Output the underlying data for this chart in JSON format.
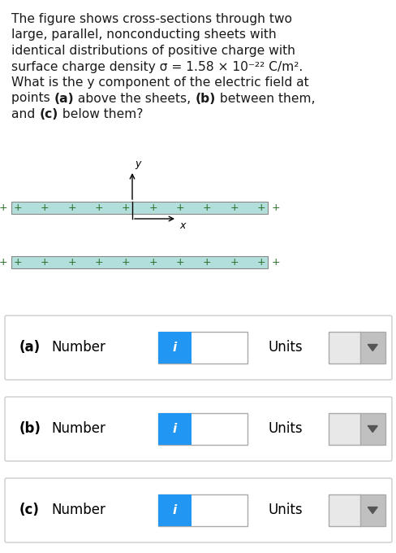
{
  "background_color": "#ffffff",
  "text_color": "#1a1a1a",
  "sheet_color": "#b2dfdb",
  "sheet_border_color": "#888888",
  "plus_color": "#2a6e2a",
  "blue_btn_color": "#2196F3",
  "dropdown_bg": "#d8d8d8",
  "dropdown_arrow_bg": "#c0c0c0",
  "input_border": "#aaaaaa",
  "row_border": "#cccccc",
  "fig_width": 4.89,
  "fig_height": 6.8,
  "dpi": 100,
  "title_lines": [
    "The figure shows cross-sections through two",
    "large, parallel, nonconducting sheets with",
    "identical distributions of positive charge with",
    "surface charge density σ = 1.58 × 10⁻²² C/m².",
    "What is the y component of the electric field at",
    "points (a) above the sheets, (b) between them,",
    "and (c) below them?"
  ],
  "title_bold_segments": [
    [
      5,
      [
        "points ",
        "(a)",
        " above the sheets, ",
        "(b)",
        " between them,"
      ]
    ],
    [
      6,
      [
        "and ",
        "(c)",
        " below them?"
      ]
    ]
  ],
  "rows": [
    {
      "label": "(a)"
    },
    {
      "label": "(b)"
    },
    {
      "label": "(c)"
    }
  ]
}
